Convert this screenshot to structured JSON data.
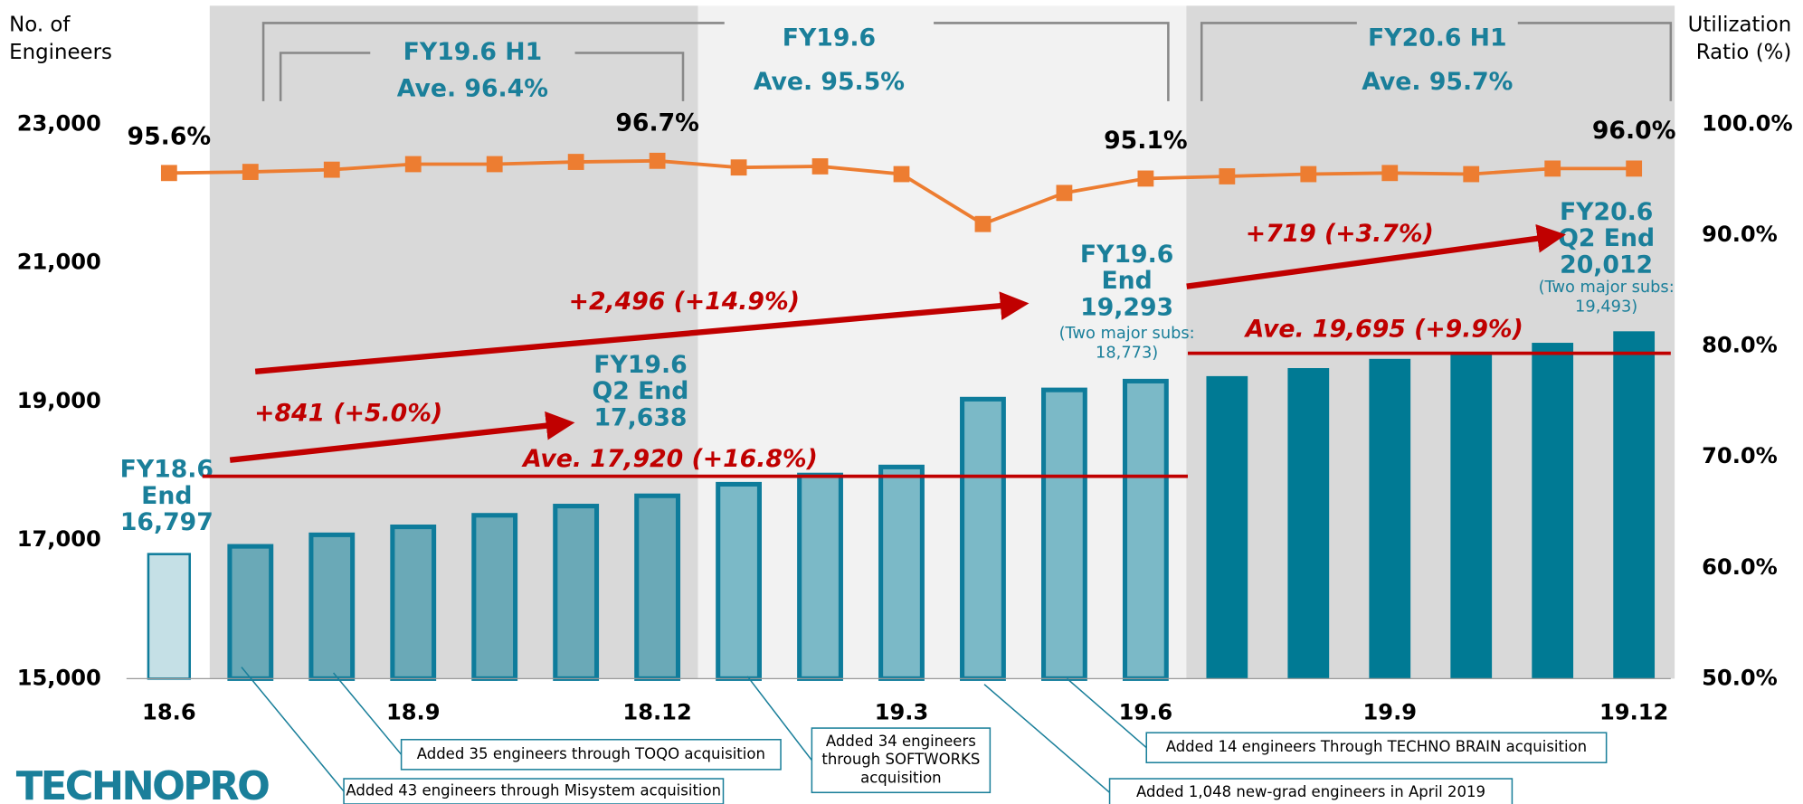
{
  "chart_data": {
    "type": "bar_line",
    "categories": [
      "18.6",
      null,
      null,
      "18.9",
      null,
      null,
      "18.12",
      null,
      null,
      "19.3",
      null,
      null,
      "19.6",
      null,
      null,
      "19.9",
      null,
      null,
      "19.12"
    ],
    "series": [
      {
        "type": "bar",
        "edgecolor": "#0e7c9b",
        "colors": [
          "#c5e0e6",
          "#6aa9b7",
          "#6aa9b7",
          "#6aa9b7",
          "#6aa9b7",
          "#6aa9b7",
          "#6aa9b7",
          "#7bb9c7",
          "#7bb9c7",
          "#7bb9c7",
          "#7bb9c7",
          "#7bb9c7",
          "#7bb9c7",
          "#007a94",
          "#007a94",
          "#007a94",
          "#007a94",
          "#007a94",
          "#007a94"
        ],
        "values": [
          16797,
          16909,
          17075,
          17190,
          17357,
          17490,
          17638,
          17805,
          17938,
          18054,
          19033,
          19166,
          19293,
          19365,
          19481,
          19614,
          19714,
          19846,
          20012
        ],
        "value_labels": [
          "16,797",
          null,
          null,
          null,
          null,
          null,
          "17,638",
          null,
          null,
          null,
          null,
          null,
          "19,293",
          null,
          null,
          null,
          null,
          null,
          "20,012"
        ]
      },
      {
        "type": "line",
        "axis": "y2",
        "color": "#ed7d31",
        "values": [
          95.6,
          95.7,
          95.9,
          96.4,
          96.4,
          96.6,
          96.7,
          96.1,
          96.2,
          95.5,
          91.0,
          93.8,
          95.1,
          95.3,
          95.5,
          95.6,
          95.5,
          96.0,
          96.0
        ],
        "value_labels": [
          "95.6%",
          null,
          null,
          null,
          null,
          null,
          "96.7%",
          null,
          null,
          null,
          null,
          null,
          "95.1%",
          null,
          null,
          null,
          null,
          null,
          "96.0%"
        ]
      }
    ],
    "ylabel": [
      "No. of",
      "Engineers"
    ],
    "y2label": [
      "Utilization",
      "Ratio (%)"
    ],
    "ylim": [
      15000,
      23000
    ],
    "yticks": [
      {
        "value": 15000,
        "label": "15,000"
      },
      {
        "value": 17000,
        "label": "17,000"
      },
      {
        "value": 19000,
        "label": "19,000"
      },
      {
        "value": 21000,
        "label": "21,000"
      },
      {
        "value": 23000,
        "label": "23,000"
      }
    ],
    "y2lim": [
      50,
      100
    ],
    "y2ticks": [
      {
        "value": 50,
        "label": "50.0%"
      },
      {
        "value": 60,
        "label": "60.0%"
      },
      {
        "value": 70,
        "label": "70.0%"
      },
      {
        "value": 80,
        "label": "80.0%"
      },
      {
        "value": 90,
        "label": "90.0%"
      },
      {
        "value": 100,
        "label": "100.0%"
      }
    ],
    "ref_lines": [
      {
        "value": 17920,
        "label": "Ave. 17,920 (+16.8%)",
        "color": "#c00000"
      },
      {
        "value": 19695,
        "label": "Ave. 19,695 (+9.9%)",
        "color": "#c00000"
      }
    ],
    "periods": [
      {
        "title": "FY19.6 H1",
        "label": "Ave. 96.4%"
      },
      {
        "title": "FY19.6",
        "label": "Ave. 95.5%"
      },
      {
        "title": "FY20.6 H1",
        "label": "Ave. 95.7%"
      }
    ],
    "growth_labels": [
      "+841 (+5.0%)",
      "+2,496 (+14.9%)",
      "+719 (+3.7%)"
    ],
    "bar_notes": [
      [
        "FY18.6",
        "End"
      ],
      [
        "FY19.6",
        "Q2 End"
      ],
      [
        "FY19.6",
        "End"
      ],
      [
        "FY20.6",
        "Q2 End"
      ]
    ],
    "sub_notes": [
      [
        "(Two major subs:",
        "18,773)"
      ],
      [
        "(Two major subs:",
        "19,493)"
      ]
    ],
    "callouts": [
      [
        "Added 43 engineers through Misystem acquisition"
      ],
      [
        "Added 35 engineers through TOQO acquisition"
      ],
      [
        "Added 34 engineers",
        "through SOFTWORKS",
        "acquisition"
      ],
      [
        "Added 14 engineers Through TECHNO BRAIN acquisition"
      ],
      [
        "Added 1,048 new-grad engineers in April 2019"
      ]
    ],
    "logo": "TECHNOPRO"
  }
}
